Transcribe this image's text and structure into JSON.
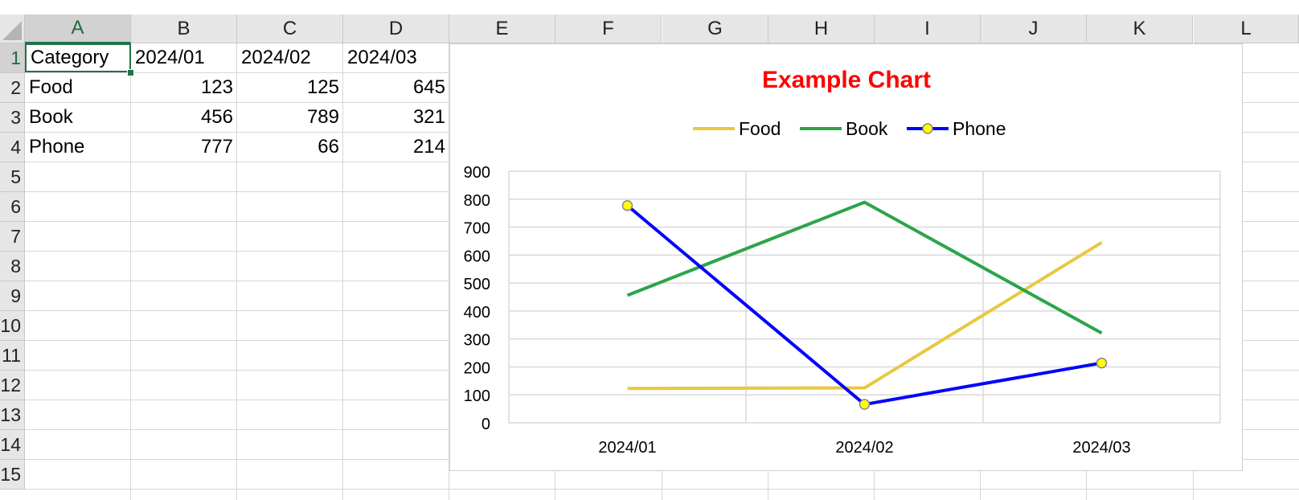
{
  "sheet": {
    "columns": [
      "A",
      "B",
      "C",
      "D",
      "E",
      "F",
      "G",
      "H",
      "I",
      "J",
      "K",
      "L"
    ],
    "rows": [
      "1",
      "2",
      "3",
      "4",
      "5",
      "6",
      "7",
      "8",
      "9",
      "10",
      "11",
      "12",
      "13",
      "14",
      "15"
    ],
    "active_column": "A",
    "active_row": "1",
    "cells": {
      "A1": "Category",
      "B1": "2024/01",
      "C1": "2024/02",
      "D1": "2024/03",
      "A2": "Food",
      "B2": "123",
      "C2": "125",
      "D2": "645",
      "A3": "Book",
      "B3": "456",
      "C3": "789",
      "D3": "321",
      "A4": "Phone",
      "B4": "777",
      "C4": "66",
      "D4": "214"
    },
    "selected_cell": "A1",
    "grid_color": "#d6d6d6",
    "selection_color": "#217346"
  },
  "chart_data": {
    "type": "line",
    "title": "Example Chart",
    "title_color": "#ff0000",
    "categories": [
      "2024/01",
      "2024/02",
      "2024/03"
    ],
    "series": [
      {
        "name": "Food",
        "values": [
          123,
          125,
          645
        ],
        "color": "#e8c840",
        "markers": false
      },
      {
        "name": "Book",
        "values": [
          456,
          789,
          321
        ],
        "color": "#2ca44a",
        "markers": false
      },
      {
        "name": "Phone",
        "values": [
          777,
          66,
          214
        ],
        "color": "#0000ff",
        "markers": true,
        "marker_color": "#ffff00"
      }
    ],
    "ylim": [
      0,
      900
    ],
    "yticks": [
      0,
      100,
      200,
      300,
      400,
      500,
      600,
      700,
      800,
      900
    ],
    "xlabel": "",
    "ylabel": "",
    "legend_position": "top",
    "grid": true
  }
}
